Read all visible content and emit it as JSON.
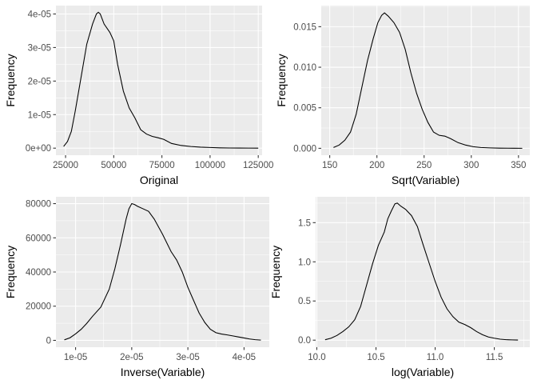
{
  "chart_data": [
    {
      "type": "line",
      "xlabel": "Original",
      "ylabel": "Frequency",
      "xlim": [
        20000,
        127000
      ],
      "ylim": [
        -2.1e-06,
        4.25e-05
      ],
      "x_ticks": [
        25000,
        50000,
        75000,
        100000,
        125000
      ],
      "x_tick_labels": [
        "25000",
        "50000",
        "75000",
        "100000",
        "125000"
      ],
      "y_ticks": [
        0,
        1e-05,
        2e-05,
        3e-05,
        4e-05
      ],
      "y_tick_labels": [
        "0e+00",
        "1e-05",
        "2e-05",
        "3e-05",
        "4e-05"
      ],
      "grid": true,
      "series": [
        {
          "x": [
            24000,
            26000,
            28000,
            30000,
            33000,
            36000,
            39000,
            41000,
            42000,
            43000,
            45000,
            48000,
            50000,
            52000,
            55000,
            58000,
            61000,
            64000,
            67000,
            70000,
            73000,
            76000,
            80000,
            85000,
            90000,
            95000,
            100000,
            105000,
            110000,
            115000,
            120000,
            125000
          ],
          "y": [
            5e-07,
            2e-06,
            5e-06,
            1.1e-05,
            2.1e-05,
            3.1e-05,
            3.7e-05,
            4e-05,
            4.05e-05,
            4e-05,
            3.7e-05,
            3.45e-05,
            3.2e-05,
            2.5e-05,
            1.7e-05,
            1.2e-05,
            9e-06,
            5.5e-06,
            4.2e-06,
            3.5e-06,
            3.1e-06,
            2.6e-06,
            1.4e-06,
            8e-07,
            5e-07,
            3e-07,
            2e-07,
            1e-07,
            5e-08,
            3e-08,
            1e-08,
            0
          ]
        }
      ]
    },
    {
      "type": "line",
      "xlabel": "Sqrt(Variable)",
      "ylabel": "Frequency",
      "xlim": [
        141,
        362
      ],
      "ylim": [
        -0.00085,
        0.0176
      ],
      "x_ticks": [
        150,
        200,
        250,
        300,
        350
      ],
      "x_tick_labels": [
        "150",
        "200",
        "250",
        "300",
        "350"
      ],
      "y_ticks": [
        0,
        0.005,
        0.01,
        0.015
      ],
      "y_tick_labels": [
        "0.000",
        "0.005",
        "0.010",
        "0.015"
      ],
      "grid": true,
      "series": [
        {
          "x": [
            154,
            160,
            166,
            172,
            178,
            184,
            190,
            196,
            201,
            205,
            208,
            212,
            218,
            224,
            230,
            236,
            242,
            248,
            254,
            260,
            266,
            272,
            278,
            286,
            294,
            302,
            310,
            320,
            330,
            345,
            354
          ],
          "y": [
            0.0001,
            0.0004,
            0.001,
            0.002,
            0.0042,
            0.0075,
            0.0108,
            0.0135,
            0.0155,
            0.0164,
            0.0167,
            0.0163,
            0.0155,
            0.0143,
            0.0122,
            0.0093,
            0.0068,
            0.0048,
            0.0032,
            0.002,
            0.0016,
            0.0015,
            0.0012,
            0.0007,
            0.0004,
            0.0002,
            0.0001,
            5e-05,
            2e-05,
            1e-05,
            0
          ]
        }
      ]
    },
    {
      "type": "line",
      "xlabel": "Inverse(Variable)",
      "ylabel": "Frequency",
      "xlim": [
        6.5e-06,
        4.45e-05
      ],
      "ylim": [
        -4000,
        84000
      ],
      "x_ticks": [
        1e-05,
        2e-05,
        3e-05,
        4e-05
      ],
      "x_tick_labels": [
        "1e-05",
        "2e-05",
        "3e-05",
        "4e-05"
      ],
      "y_ticks": [
        0,
        20000,
        40000,
        60000,
        80000
      ],
      "y_tick_labels": [
        "0",
        "20000",
        "40000",
        "60000",
        "80000"
      ],
      "grid": true,
      "series": [
        {
          "x": [
            8e-06,
            9e-06,
            1e-05,
            1.1e-05,
            1.2e-05,
            1.3e-05,
            1.45e-05,
            1.6e-05,
            1.7e-05,
            1.8e-05,
            1.9e-05,
            1.95e-05,
            2e-05,
            2.05e-05,
            2.1e-05,
            2.2e-05,
            2.3e-05,
            2.4e-05,
            2.55e-05,
            2.7e-05,
            2.8e-05,
            2.9e-05,
            3e-05,
            3.1e-05,
            3.2e-05,
            3.3e-05,
            3.4e-05,
            3.5e-05,
            3.6e-05,
            3.7e-05,
            3.8e-05,
            3.9e-05,
            4e-05,
            4.1e-05,
            4.2e-05,
            4.3e-05
          ],
          "y": [
            300,
            1500,
            3800,
            6500,
            10000,
            14000,
            19500,
            30000,
            42000,
            56000,
            71000,
            77000,
            80000,
            79500,
            78500,
            77000,
            75500,
            71000,
            62000,
            52000,
            47000,
            40000,
            31000,
            23500,
            16000,
            10500,
            6500,
            4500,
            3700,
            3200,
            2600,
            2000,
            1400,
            800,
            400,
            150
          ]
        }
      ]
    },
    {
      "type": "line",
      "xlabel": "log(Variable)",
      "ylabel": "Frequency",
      "xlim": [
        9.99,
        11.8
      ],
      "ylim": [
        -0.09,
        1.83
      ],
      "x_ticks": [
        10,
        10.5,
        11,
        11.5
      ],
      "x_tick_labels": [
        "10.0",
        "10.5",
        "11.0",
        "11.5"
      ],
      "y_ticks": [
        0,
        0.5,
        1,
        1.5
      ],
      "y_tick_labels": [
        "0.0",
        "0.5",
        "1.0",
        "1.5"
      ],
      "grid": true,
      "series": [
        {
          "x": [
            10.07,
            10.12,
            10.17,
            10.22,
            10.27,
            10.32,
            10.37,
            10.42,
            10.47,
            10.52,
            10.57,
            10.6,
            10.63,
            10.66,
            10.68,
            10.71,
            10.75,
            10.8,
            10.85,
            10.9,
            10.95,
            11.0,
            11.05,
            11.1,
            11.15,
            11.2,
            11.25,
            11.3,
            11.35,
            11.4,
            11.45,
            11.5,
            11.55,
            11.6,
            11.65,
            11.7
          ],
          "y": [
            0.005,
            0.025,
            0.06,
            0.11,
            0.17,
            0.26,
            0.43,
            0.7,
            0.97,
            1.21,
            1.38,
            1.55,
            1.65,
            1.74,
            1.75,
            1.71,
            1.67,
            1.59,
            1.45,
            1.21,
            0.98,
            0.75,
            0.55,
            0.4,
            0.3,
            0.23,
            0.2,
            0.16,
            0.11,
            0.07,
            0.04,
            0.025,
            0.012,
            0.006,
            0.003,
            0.001
          ]
        }
      ]
    }
  ]
}
